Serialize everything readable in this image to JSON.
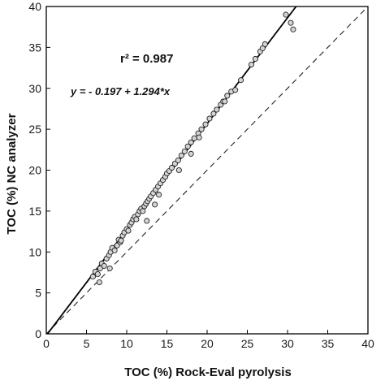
{
  "chart_data": {
    "type": "scatter",
    "xlabel": "TOC (%) Rock-Eval pyrolysis",
    "ylabel": "TOC (%) NC analyzer",
    "xlim": [
      0,
      40
    ],
    "ylim": [
      0,
      40
    ],
    "xticks": [
      "0",
      "5",
      "10",
      "15",
      "20",
      "25",
      "30",
      "35",
      "40"
    ],
    "yticks": [
      "0",
      "5",
      "10",
      "15",
      "20",
      "25",
      "30",
      "35",
      "40"
    ],
    "r2_text": "r² = 0.987",
    "equation_text": "y = - 0.197 + 1.294*x",
    "regression": {
      "intercept": -0.197,
      "slope": 1.294
    },
    "reference_line": {
      "intercept": 0,
      "slope": 1,
      "style": "dashed"
    },
    "series": [
      {
        "x": [
          5.8,
          6.1,
          6.4,
          6.7,
          6.9,
          7.2,
          7.5,
          7.8,
          8.0,
          8.2,
          8.5,
          8.8,
          9.0,
          9.2,
          9.5,
          9.7,
          10.0,
          10.2,
          10.4,
          10.6,
          10.8,
          11.0,
          11.2,
          11.4,
          11.6,
          11.8,
          12.0,
          12.2,
          12.4,
          12.6,
          12.8,
          13.0,
          13.3,
          13.6,
          13.9,
          14.2,
          14.5,
          14.8,
          15.0,
          15.3,
          15.6,
          16.0,
          16.4,
          16.8,
          17.2,
          17.6,
          18.0,
          18.4,
          18.9,
          19.3,
          19.8,
          20.3,
          20.8,
          21.2,
          21.7,
          22.0,
          22.5,
          23.0,
          24.2,
          25.5,
          26.0,
          26.6,
          26.9,
          27.2,
          29.8,
          30.4,
          30.7,
          6.6,
          7.9,
          12.5,
          13.5,
          16.5,
          18.0,
          22.2,
          23.5,
          19.0,
          14.0,
          9.3
        ],
        "y": [
          7.0,
          7.6,
          7.3,
          8.0,
          8.6,
          8.3,
          9.2,
          9.6,
          10.0,
          10.5,
          10.2,
          10.8,
          11.5,
          11.2,
          12.0,
          12.4,
          12.8,
          12.6,
          13.3,
          13.6,
          14.0,
          14.3,
          14.0,
          14.6,
          15.0,
          15.3,
          15.0,
          15.6,
          15.9,
          16.2,
          16.5,
          16.8,
          17.2,
          17.6,
          18.0,
          18.4,
          18.8,
          19.2,
          19.6,
          19.9,
          20.3,
          20.8,
          21.2,
          21.8,
          22.3,
          22.9,
          23.4,
          23.9,
          24.5,
          25.0,
          25.6,
          26.3,
          26.9,
          27.4,
          28.0,
          28.4,
          29.1,
          29.6,
          31.0,
          32.9,
          33.6,
          34.5,
          34.9,
          35.4,
          39.0,
          38.0,
          37.2,
          6.3,
          8.0,
          13.8,
          15.8,
          20.0,
          22.0,
          28.4,
          29.8,
          24.0,
          17.0,
          11.4
        ]
      }
    ]
  }
}
